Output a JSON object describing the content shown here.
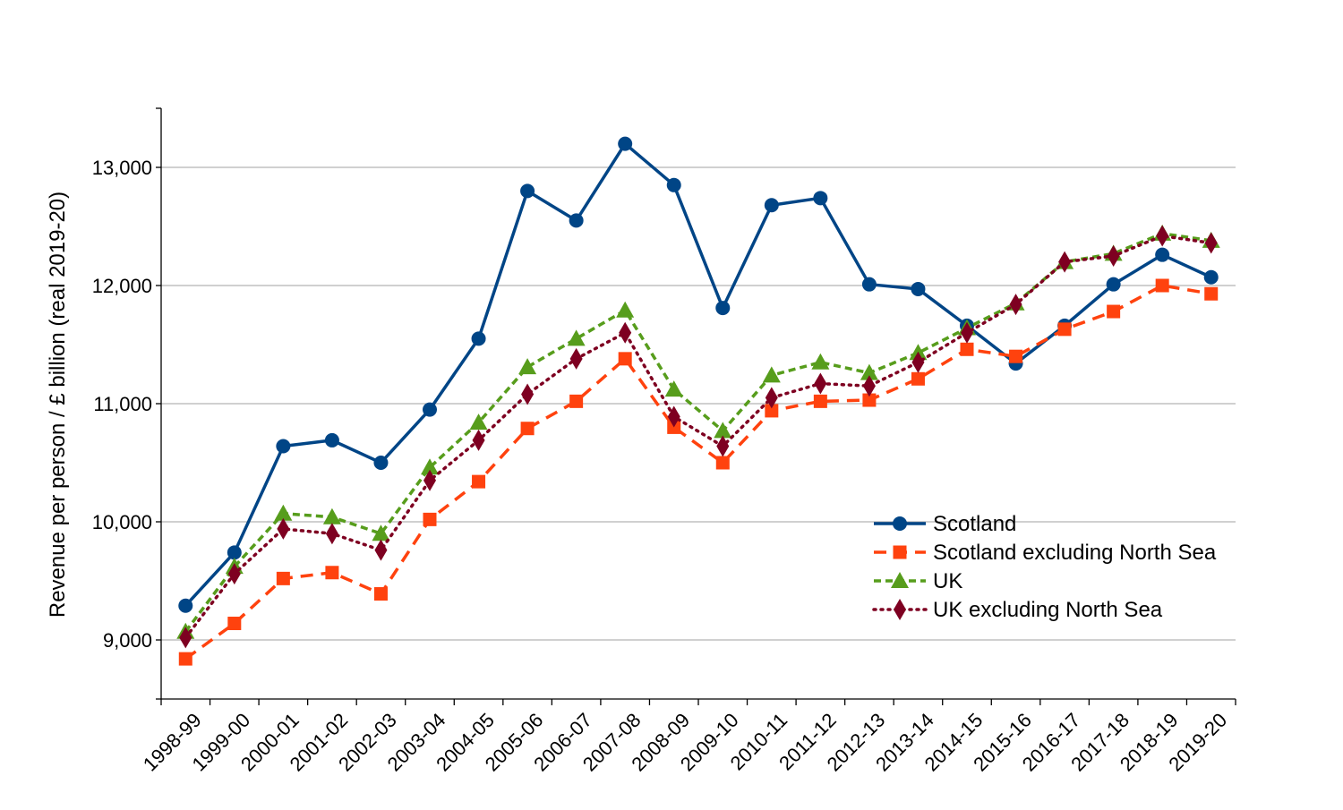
{
  "chart_data": {
    "type": "line",
    "title": "",
    "xlabel": "",
    "ylabel": "Revenue per person / £ billion (real 2019-20)",
    "ylim": [
      8500,
      13500
    ],
    "yticks": [
      9000,
      10000,
      11000,
      12000,
      13000
    ],
    "ytick_labels": [
      "9,000",
      "10,000",
      "11,000",
      "12,000",
      "13,000"
    ],
    "grid": true,
    "legend_position": "lower-right",
    "categories": [
      "1998-99",
      "1999-00",
      "2000-01",
      "2001-02",
      "2002-03",
      "2003-04",
      "2004-05",
      "2005-06",
      "2006-07",
      "2007-08",
      "2008-09",
      "2009-10",
      "2010-11",
      "2011-12",
      "2012-13",
      "2013-14",
      "2014-15",
      "2015-16",
      "2016-17",
      "2017-18",
      "2018-19",
      "2019-20"
    ],
    "series": [
      {
        "name": "Scotland",
        "color": "#004586",
        "marker": "circle",
        "line_style": "solid",
        "values": [
          9290,
          9740,
          10640,
          10690,
          10500,
          10950,
          11550,
          12800,
          12550,
          13200,
          12850,
          11810,
          12680,
          12740,
          12010,
          11970,
          11660,
          11340,
          11660,
          12010,
          12260,
          12070
        ]
      },
      {
        "name": "Scotland excluding North Sea",
        "color": "#ff420e",
        "marker": "square",
        "line_style": "dashed",
        "values": [
          8840,
          9140,
          9520,
          9570,
          9390,
          10020,
          10340,
          10790,
          11020,
          11380,
          10800,
          10500,
          10940,
          11020,
          11030,
          11210,
          11460,
          11400,
          11630,
          11780,
          12000,
          11930
        ]
      },
      {
        "name": "UK",
        "color": "#579d1c",
        "marker": "triangle",
        "line_style": "short-dashed",
        "values": [
          9070,
          9620,
          10070,
          10040,
          9900,
          10460,
          10840,
          11310,
          11550,
          11790,
          11120,
          10770,
          11240,
          11350,
          11260,
          11430,
          11640,
          11850,
          12200,
          12270,
          12440,
          12380
        ]
      },
      {
        "name": "UK excluding North Sea",
        "color": "#7e0021",
        "marker": "diamond",
        "line_style": "dotted",
        "values": [
          9020,
          9560,
          9940,
          9900,
          9760,
          10350,
          10690,
          11080,
          11380,
          11600,
          10890,
          10640,
          11050,
          11170,
          11150,
          11350,
          11600,
          11840,
          12200,
          12250,
          12420,
          12360
        ]
      }
    ]
  }
}
